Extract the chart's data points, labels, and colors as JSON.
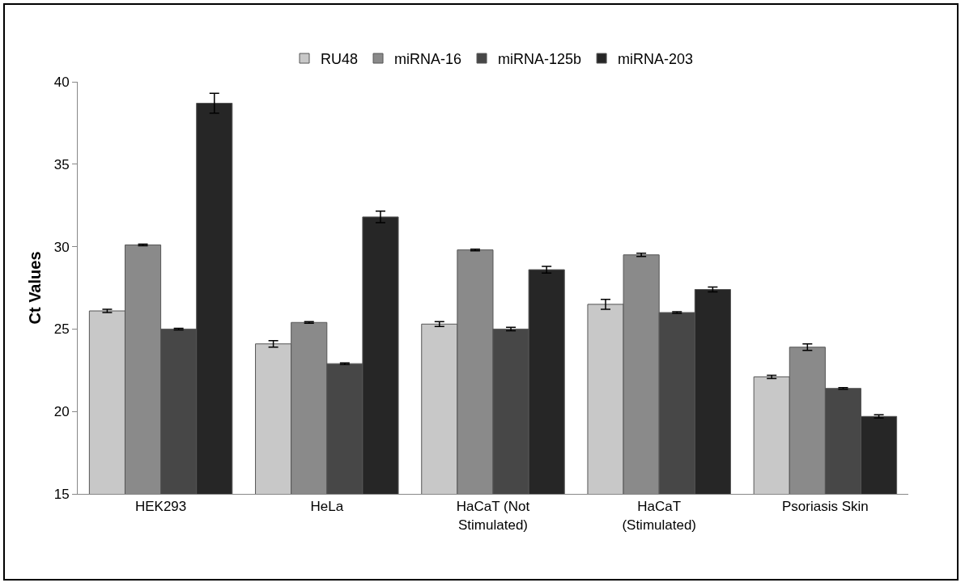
{
  "chart_data": {
    "type": "bar",
    "ylabel": "Ct Values",
    "categories": [
      "HEK293",
      "HeLa",
      "HaCaT (Not\nStimulated)",
      "HaCaT\n(Stimulated)",
      "Psoriasis Skin"
    ],
    "series": [
      {
        "name": "RU48",
        "color": "#c8c8c8",
        "values": [
          26.1,
          24.1,
          25.3,
          26.5,
          22.1
        ],
        "errors": [
          0.1,
          0.2,
          0.15,
          0.3,
          0.1
        ]
      },
      {
        "name": "miRNA-16",
        "color": "#8a8a8a",
        "values": [
          30.1,
          25.4,
          29.8,
          29.5,
          23.9
        ],
        "errors": [
          0.05,
          0.05,
          0.05,
          0.1,
          0.2
        ]
      },
      {
        "name": "miRNA-125b",
        "color": "#474747",
        "values": [
          25.0,
          22.9,
          25.0,
          26.0,
          21.4
        ],
        "errors": [
          0.05,
          0.05,
          0.1,
          0.05,
          0.05
        ]
      },
      {
        "name": "miRNA-203",
        "color": "#262626",
        "values": [
          38.7,
          31.8,
          28.6,
          27.4,
          19.7
        ],
        "errors": [
          0.6,
          0.35,
          0.2,
          0.15,
          0.1
        ]
      }
    ],
    "ylim": [
      15,
      40
    ],
    "yticks": [
      15,
      20,
      25,
      30,
      35,
      40
    ],
    "grid": false,
    "legend": "top"
  }
}
